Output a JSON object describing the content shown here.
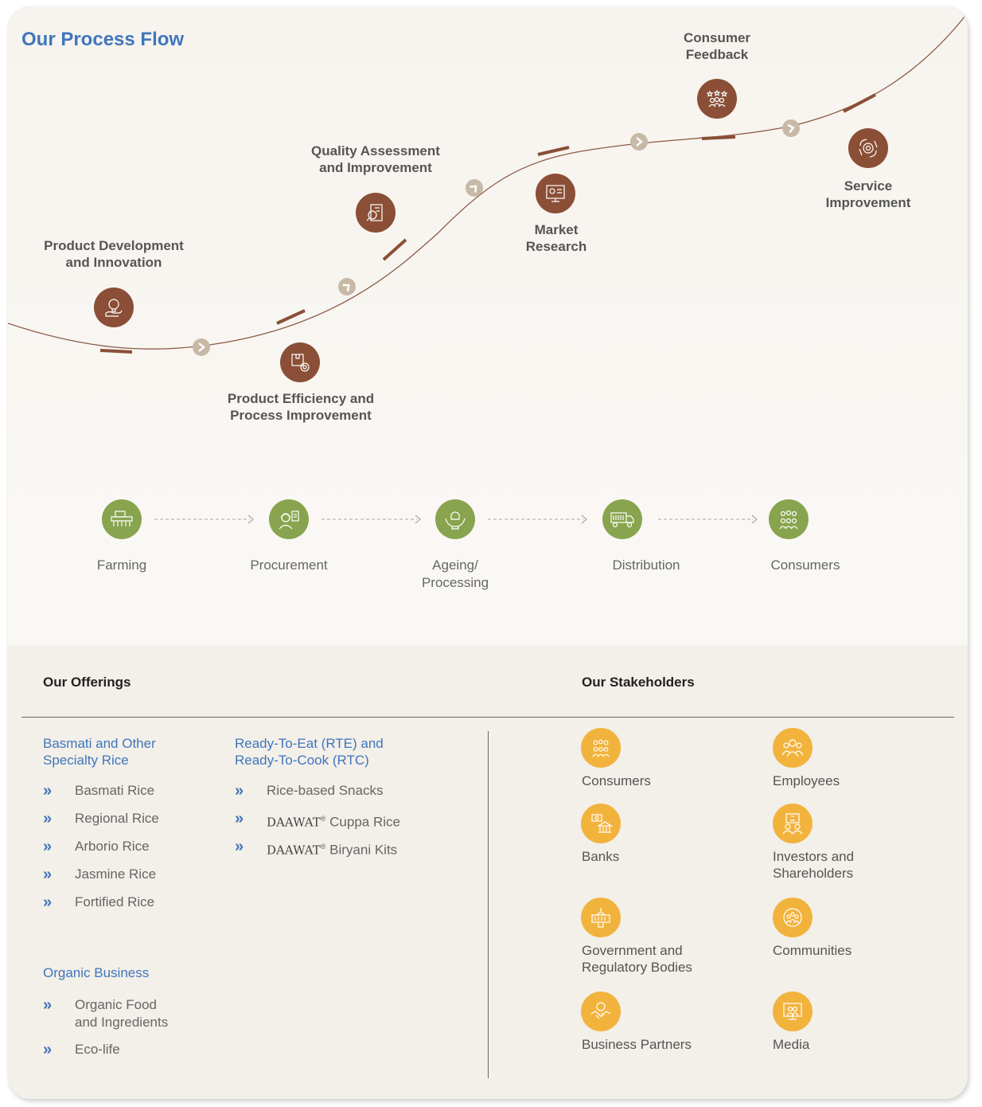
{
  "process_flow": {
    "title": "Our Process Flow",
    "steps": [
      {
        "line1": "Product Development",
        "line2": "and Innovation",
        "icon": "idea-bulb-hand-icon"
      },
      {
        "line1": "Product Efficiency and",
        "line2": "Process Improvement",
        "icon": "box-gear-icon"
      },
      {
        "line1": "Quality Assessment",
        "line2": "and Improvement",
        "icon": "quality-inspection-icon"
      },
      {
        "line1": "Market",
        "line2": "Research",
        "icon": "market-chart-icon"
      },
      {
        "line1": "Consumer",
        "line2": "Feedback",
        "icon": "rating-people-icon"
      },
      {
        "line1": "Service",
        "line2": "Improvement",
        "icon": "service-gear-icon"
      }
    ]
  },
  "value_chain": [
    {
      "line1": "Farming",
      "line2": "",
      "icon": "tractor-icon"
    },
    {
      "line1": "Procurement",
      "line2": "",
      "icon": "worker-clipboard-icon"
    },
    {
      "line1": "Ageing/",
      "line2": "Processing",
      "icon": "processing-hands-icon"
    },
    {
      "line1": "Distribution",
      "line2": "",
      "icon": "truck-icon"
    },
    {
      "line1": "Consumers",
      "line2": "",
      "icon": "consumers-group-icon"
    }
  ],
  "offerings": {
    "heading": "Our Offerings",
    "basmati": {
      "line1": "Basmati and Other",
      "line2": "Specialty Rice",
      "items": [
        "Basmati Rice",
        "Regional Rice",
        "Arborio Rice",
        "Jasmine Rice",
        "Fortified Rice"
      ]
    },
    "rte": {
      "line1": "Ready-To-Eat (RTE) and",
      "line2": "Ready-To-Cook (RTC)",
      "item1": "Rice-based Snacks",
      "brand": "DAAWAT",
      "reg": "®",
      "item2_suffix": " Cuppa Rice",
      "item3_suffix": " Biryani Kits"
    },
    "organic": {
      "title": "Organic Business",
      "item1_line1": "Organic Food",
      "item1_line2": "and Ingredients",
      "item2": "Eco-life"
    },
    "bullet": "»"
  },
  "stakeholders": {
    "heading": "Our Stakeholders",
    "items": [
      {
        "line1": "Consumers",
        "line2": "",
        "icon": "consumers-icon"
      },
      {
        "line1": "Employees",
        "line2": "",
        "icon": "employees-icon"
      },
      {
        "line1": "Banks",
        "line2": "",
        "icon": "bank-icon"
      },
      {
        "line1": "Investors and",
        "line2": "Shareholders",
        "icon": "investors-icon"
      },
      {
        "line1": "Government and",
        "line2": "Regulatory Bodies",
        "icon": "government-building-icon"
      },
      {
        "line1": "Communities",
        "line2": "",
        "icon": "communities-icon"
      },
      {
        "line1": "Business Partners",
        "line2": "",
        "icon": "handshake-icon"
      },
      {
        "line1": "Media",
        "line2": "",
        "icon": "media-screen-icon"
      }
    ]
  },
  "colors": {
    "brown": "#8a4f36",
    "green": "#88a44e",
    "yellow": "#f2b33d",
    "blue": "#3f76bb"
  }
}
